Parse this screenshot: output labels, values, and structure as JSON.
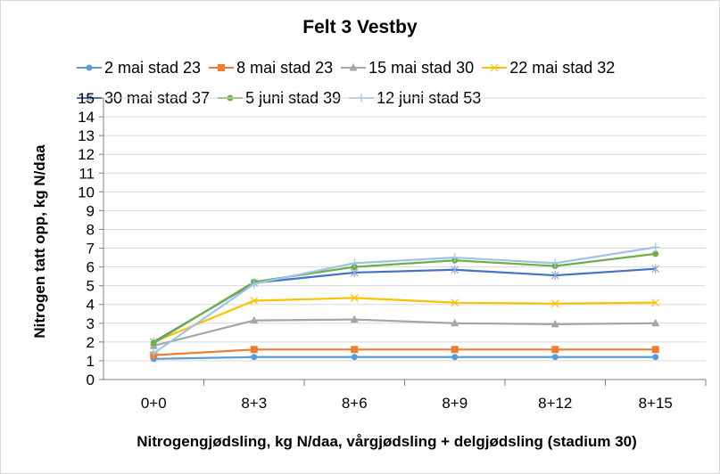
{
  "chart_data": {
    "type": "line",
    "title": "Felt 3 Vestby",
    "xlabel": "Nitrogengjødsling, kg N/daa, vårgjødsling + delgjødsling (stadium 30)",
    "ylabel": "Nitrogen tatt opp, kg N/daa",
    "ylim": [
      0,
      15
    ],
    "yticks": [
      "0",
      "1",
      "2",
      "3",
      "4",
      "5",
      "6",
      "7",
      "8",
      "9",
      "10",
      "11",
      "12",
      "13",
      "14",
      "15"
    ],
    "categories": [
      "0+0",
      "8+3",
      "8+6",
      "8+9",
      "8+12",
      "8+15"
    ],
    "grid": true,
    "legend": "top",
    "series": [
      {
        "name": "2 mai stad 23",
        "color": "#5b9bd5",
        "marker": "circle",
        "values": [
          1.1,
          1.2,
          1.2,
          1.2,
          1.2,
          1.2
        ]
      },
      {
        "name": "8 mai stad 23",
        "color": "#ed7d31",
        "marker": "square",
        "values": [
          1.3,
          1.6,
          1.6,
          1.6,
          1.6,
          1.6
        ]
      },
      {
        "name": "15 mai stad 30",
        "color": "#a5a5a5",
        "marker": "triangle",
        "values": [
          1.8,
          3.15,
          3.2,
          3.0,
          2.95,
          3.0
        ]
      },
      {
        "name": "22 mai stad 32",
        "color": "#ffc000",
        "marker": "x",
        "values": [
          2.0,
          4.2,
          4.35,
          4.1,
          4.05,
          4.1
        ]
      },
      {
        "name": "30 mai stad 37",
        "color": "#4472c4",
        "marker": "star",
        "values": [
          2.0,
          5.15,
          5.7,
          5.85,
          5.55,
          5.9
        ]
      },
      {
        "name": "5 juni stad 39",
        "color": "#70ad47",
        "marker": "circle",
        "values": [
          1.95,
          5.2,
          6.0,
          6.35,
          6.05,
          6.7
        ]
      },
      {
        "name": "12 juni stad 53",
        "color": "#9dc3e6",
        "marker": "plus",
        "values": [
          1.4,
          5.1,
          6.2,
          6.5,
          6.2,
          7.05
        ]
      }
    ]
  }
}
